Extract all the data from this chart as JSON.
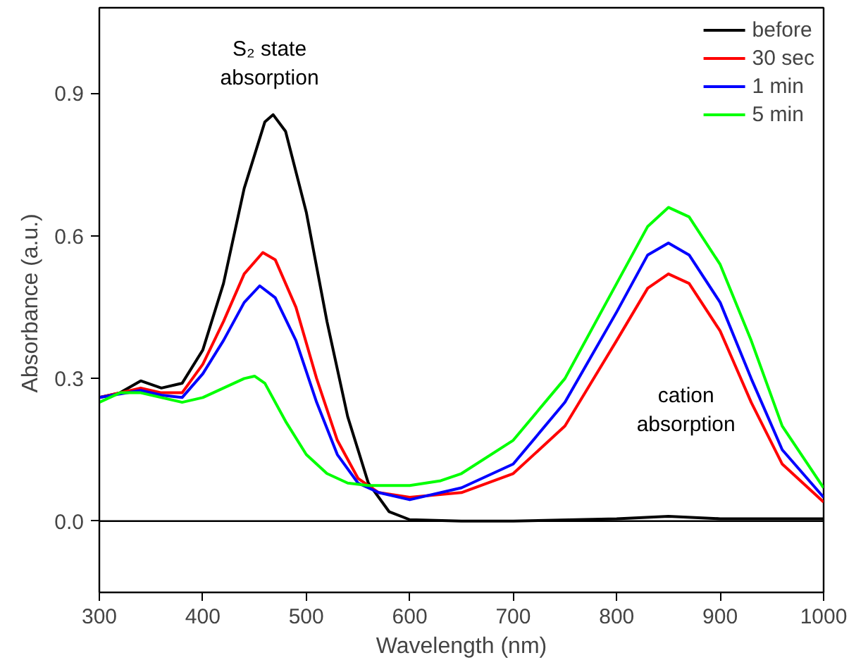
{
  "chart_data": {
    "type": "line",
    "xlabel": "Wavelength (nm)",
    "ylabel": "Absorbance  (a.u.)",
    "xlim": [
      300,
      1000
    ],
    "ylim": [
      -0.15,
      1.08
    ],
    "xticks": [
      300,
      400,
      500,
      600,
      700,
      800,
      900,
      1000
    ],
    "yticks": [
      {
        "value": 0,
        "label": "0.0"
      },
      0.3,
      0.6,
      0.9
    ],
    "grid": false,
    "legend": "top right",
    "marker": "none",
    "line_style": "solid",
    "ref_lines": [
      {
        "axis": "y",
        "value": 0,
        "color": "#000000"
      }
    ],
    "annotations": [
      "S₂ state\nabsorption",
      "cation\nabsorption"
    ],
    "series": [
      {
        "name": "before",
        "color": "#000000",
        "x": [
          300,
          320,
          340,
          360,
          380,
          400,
          420,
          440,
          460,
          468,
          480,
          500,
          520,
          540,
          560,
          580,
          600,
          650,
          700,
          800,
          850,
          900,
          1000
        ],
        "values": [
          0.26,
          0.27,
          0.295,
          0.28,
          0.29,
          0.36,
          0.5,
          0.7,
          0.84,
          0.855,
          0.82,
          0.65,
          0.42,
          0.22,
          0.08,
          0.02,
          0.003,
          0,
          0,
          0.005,
          0.01,
          0.005,
          0.005
        ]
      },
      {
        "name": "30 sec",
        "color": "#ff0000",
        "x": [
          300,
          320,
          340,
          360,
          380,
          400,
          420,
          440,
          458,
          470,
          490,
          510,
          530,
          550,
          570,
          600,
          650,
          700,
          750,
          800,
          830,
          850,
          870,
          900,
          930,
          960,
          1000
        ],
        "values": [
          0.26,
          0.27,
          0.28,
          0.27,
          0.27,
          0.33,
          0.42,
          0.52,
          0.565,
          0.55,
          0.45,
          0.3,
          0.17,
          0.09,
          0.06,
          0.05,
          0.06,
          0.1,
          0.2,
          0.38,
          0.49,
          0.52,
          0.5,
          0.4,
          0.25,
          0.12,
          0.04
        ]
      },
      {
        "name": "1 min",
        "color": "#0000ff",
        "x": [
          300,
          340,
          360,
          380,
          400,
          420,
          440,
          455,
          470,
          490,
          510,
          530,
          550,
          570,
          600,
          650,
          700,
          750,
          800,
          830,
          850,
          870,
          900,
          930,
          960,
          1000
        ],
        "values": [
          0.26,
          0.275,
          0.265,
          0.26,
          0.31,
          0.38,
          0.46,
          0.495,
          0.47,
          0.38,
          0.25,
          0.14,
          0.08,
          0.06,
          0.045,
          0.07,
          0.12,
          0.25,
          0.44,
          0.56,
          0.585,
          0.56,
          0.46,
          0.3,
          0.15,
          0.05
        ]
      },
      {
        "name": "5 min",
        "color": "#00ff00",
        "x": [
          300,
          320,
          340,
          360,
          380,
          400,
          420,
          440,
          450,
          460,
          480,
          500,
          520,
          540,
          560,
          600,
          630,
          650,
          700,
          750,
          800,
          830,
          850,
          870,
          900,
          930,
          960,
          1000
        ],
        "values": [
          0.25,
          0.27,
          0.27,
          0.26,
          0.25,
          0.26,
          0.28,
          0.3,
          0.305,
          0.29,
          0.21,
          0.14,
          0.1,
          0.08,
          0.075,
          0.075,
          0.085,
          0.1,
          0.17,
          0.3,
          0.5,
          0.62,
          0.66,
          0.64,
          0.54,
          0.38,
          0.2,
          0.07
        ]
      }
    ]
  }
}
